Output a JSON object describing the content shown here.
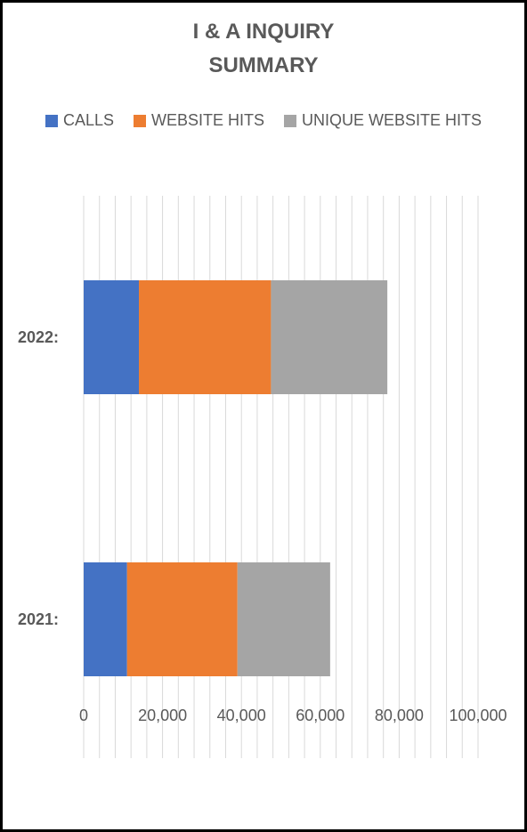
{
  "chart_data": {
    "type": "bar",
    "orientation": "horizontal",
    "stacked": true,
    "title_lines": [
      "I & A INQUIRY",
      "SUMMARY"
    ],
    "categories": [
      "2022:",
      "2021:"
    ],
    "series": [
      {
        "name": "CALLS",
        "color": "#4472C4",
        "values": [
          14000,
          11000
        ]
      },
      {
        "name": "WEBSITE HITS",
        "color": "#ED7D31",
        "values": [
          33500,
          28000
        ]
      },
      {
        "name": "UNIQUE WEBSITE HITS",
        "color": "#A5A5A5",
        "values": [
          29500,
          23500
        ]
      }
    ],
    "xlim": [
      0,
      100000
    ],
    "major_ticks": [
      0,
      20000,
      40000,
      60000,
      80000,
      100000
    ],
    "tick_labels": [
      "0",
      "20,000",
      "40,000",
      "60,000",
      "80,000",
      "100,000"
    ],
    "minor_tick_step": 4000,
    "grid": true,
    "legend_position": "top"
  }
}
